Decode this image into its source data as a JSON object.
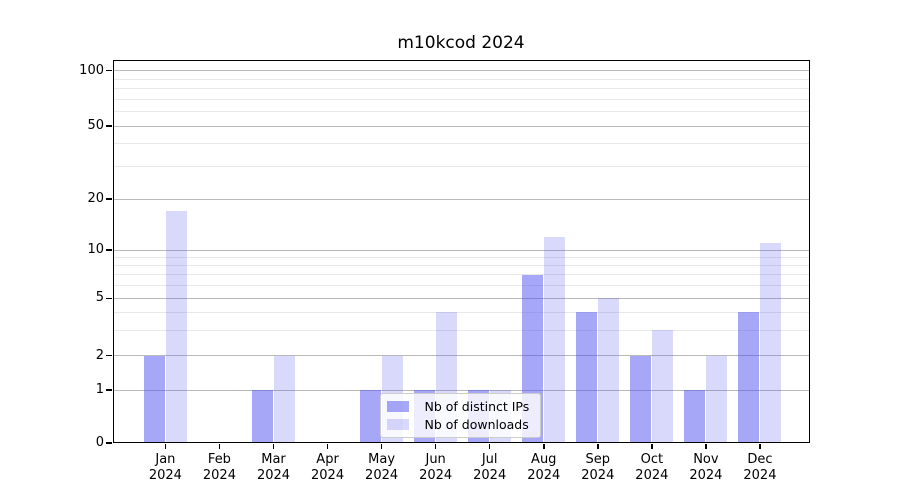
{
  "title": "m10kcod 2024",
  "chart_data": {
    "type": "bar",
    "title": "m10kcod 2024",
    "categories": [
      "Jan 2024",
      "Feb 2024",
      "Mar 2024",
      "Apr 2024",
      "May 2024",
      "Jun 2024",
      "Jul 2024",
      "Aug 2024",
      "Sep 2024",
      "Oct 2024",
      "Nov 2024",
      "Dec 2024"
    ],
    "series": [
      {
        "name": "Nb of distinct IPs",
        "color": "rgba(80,80,240,0.5)",
        "values": [
          2,
          0,
          1,
          0,
          1,
          1,
          1,
          7,
          4,
          2,
          1,
          4
        ]
      },
      {
        "name": "Nb of downloads",
        "color": "rgba(80,80,240,0.22)",
        "values": [
          17,
          0,
          2,
          0,
          2,
          4,
          1,
          12,
          5,
          3,
          2,
          11
        ]
      }
    ],
    "xlabel": "",
    "ylabel": "",
    "yscale": "symlog-like (linear 0-1, log above 1)",
    "y_major_ticks": [
      0,
      1,
      2,
      5,
      10,
      20,
      50,
      100
    ],
    "y_minor_ticks": [
      3,
      4,
      6,
      7,
      8,
      9,
      30,
      40,
      60,
      70,
      80,
      90
    ],
    "ylim": [
      0,
      115
    ],
    "grid": true,
    "legend_position": "lower center"
  },
  "legend": {
    "items": [
      "Nb of distinct IPs",
      "Nb of downloads"
    ]
  },
  "colors": {
    "bar_distinct_ips": "rgba(80,80,240,0.5)",
    "bar_downloads": "rgba(80,80,240,0.22)",
    "grid_major": "#b9b9b9",
    "grid_minor": "#e8e8e8",
    "spine": "#000000"
  }
}
